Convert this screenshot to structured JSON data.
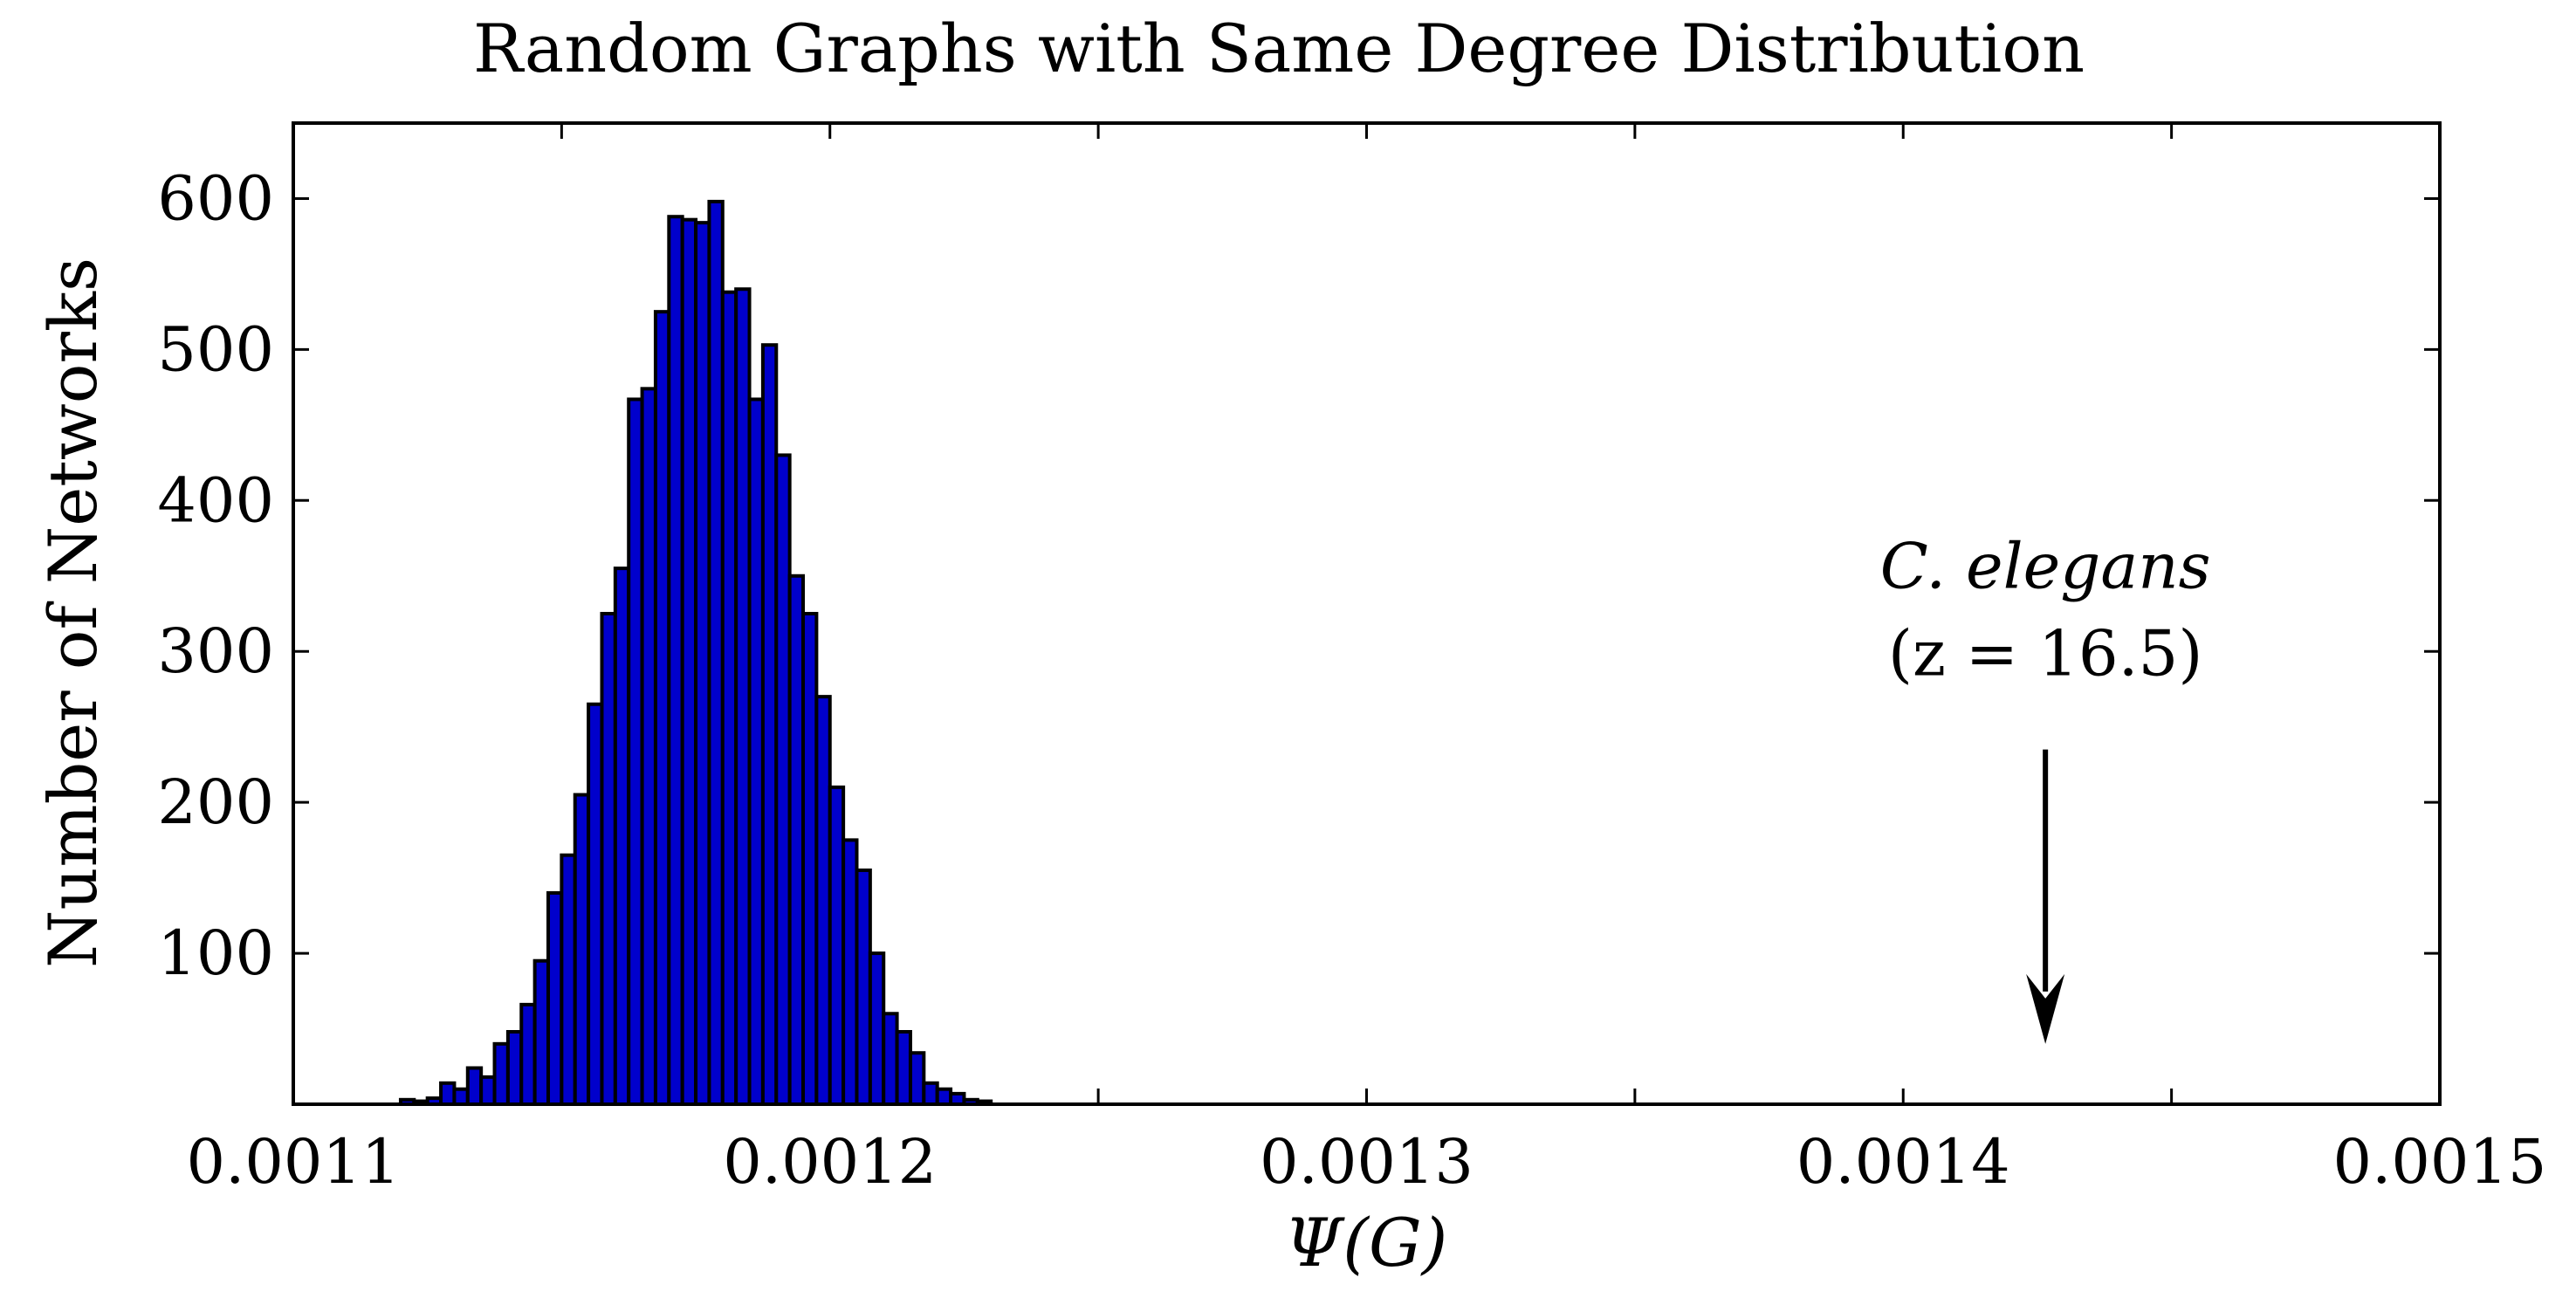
{
  "chart_data": {
    "type": "bar",
    "title": "Random Graphs with Same Degree Distribution",
    "xlabel": "Ψ(G)",
    "ylabel": "Number of Networks",
    "xlim": [
      0.0011,
      0.0015
    ],
    "ylim": [
      0,
      650
    ],
    "x_ticks": [
      0.0011,
      0.0012,
      0.0013,
      0.0014,
      0.0015
    ],
    "x_tick_labels": [
      "0.0011",
      "0.0012",
      "0.0013",
      "0.0014",
      "0.0015"
    ],
    "x_minor_ticks": [
      0.00115,
      0.00125,
      0.00135,
      0.00145
    ],
    "y_ticks": [
      100,
      200,
      300,
      400,
      500,
      600
    ],
    "y_tick_labels": [
      "100",
      "200",
      "300",
      "400",
      "500",
      "600"
    ],
    "bin_width": 2.5e-06,
    "bins": {
      "x": [
        0.00112,
        0.0011225,
        0.001125,
        0.0011275,
        0.00113,
        0.0011325,
        0.001135,
        0.0011375,
        0.00114,
        0.0011425,
        0.001145,
        0.0011475,
        0.00115,
        0.0011525,
        0.001155,
        0.0011575,
        0.00116,
        0.0011625,
        0.001165,
        0.0011675,
        0.00117,
        0.0011725,
        0.001175,
        0.0011775,
        0.00118,
        0.0011825,
        0.001185,
        0.0011875,
        0.00119,
        0.0011925,
        0.001195,
        0.0011975,
        0.0012,
        0.0012025,
        0.001205,
        0.0012075,
        0.00121,
        0.0012125,
        0.001215,
        0.0012175,
        0.00122,
        0.0012225,
        0.001225,
        0.0012275
      ],
      "y": [
        3,
        2,
        4,
        14,
        10,
        24,
        18,
        40,
        48,
        66,
        95,
        140,
        165,
        205,
        265,
        325,
        355,
        467,
        474,
        525,
        588,
        586,
        584,
        598,
        538,
        540,
        467,
        503,
        430,
        350,
        325,
        270,
        210,
        175,
        155,
        100,
        60,
        48,
        34,
        14,
        10,
        7,
        3,
        2
      ]
    },
    "annotation": {
      "text": "C. elegans",
      "subtext": "(z = 16.5)",
      "x": 0.0014265,
      "arrow_from_y": 235,
      "arrow_to_y": 40
    },
    "grid": false,
    "legend": "none",
    "bar_color": "#0000cc",
    "edge_color": "#000000"
  }
}
